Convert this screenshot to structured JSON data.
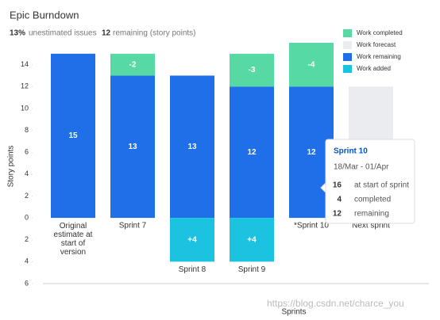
{
  "chart_data": {
    "type": "bar",
    "title": "Epic Burndown",
    "summary": [
      {
        "value": "13%",
        "label": "unestimated issues"
      },
      {
        "value": "12",
        "label": "remaining (story points)"
      }
    ],
    "ylabel": "Story points",
    "xlabel": "Sprints",
    "categories": [
      "Original estimate at start of version",
      "Sprint 7",
      "Sprint 8",
      "Sprint 9",
      "*Sprint 10",
      "Next sprint"
    ],
    "series": [
      {
        "name": "Work completed",
        "color": "#57d9a3",
        "values": [
          null,
          -2,
          null,
          -3,
          -4,
          null
        ]
      },
      {
        "name": "Work forecast",
        "color": "#ebecf0",
        "values": [
          null,
          null,
          null,
          null,
          null,
          12
        ]
      },
      {
        "name": "Work remaining",
        "color": "#1f6fe8",
        "values": [
          15,
          13,
          13,
          12,
          12,
          null
        ]
      },
      {
        "name": "Work added",
        "color": "#1cc3e0",
        "values": [
          null,
          null,
          4,
          4,
          null,
          null
        ],
        "value_labels": [
          null,
          null,
          "+4",
          "+4",
          null,
          null
        ]
      }
    ],
    "ylim": [
      -6,
      16
    ],
    "yticks": [
      {
        "value": -6,
        "label": "6"
      },
      {
        "value": -4,
        "label": "4"
      },
      {
        "value": -2,
        "label": "2"
      },
      0,
      2,
      4,
      6,
      8,
      10,
      12,
      14
    ],
    "legend": "top-right",
    "tooltip": {
      "title": "Sprint 10",
      "dates": "18/Mar - 01/Apr",
      "rows": [
        {
          "value": "16",
          "label": "at start of sprint"
        },
        {
          "value": "4",
          "label": "completed"
        },
        {
          "value": "12",
          "label": "remaining"
        }
      ]
    },
    "watermark": "https://blog.csdn.net/charce_you"
  }
}
